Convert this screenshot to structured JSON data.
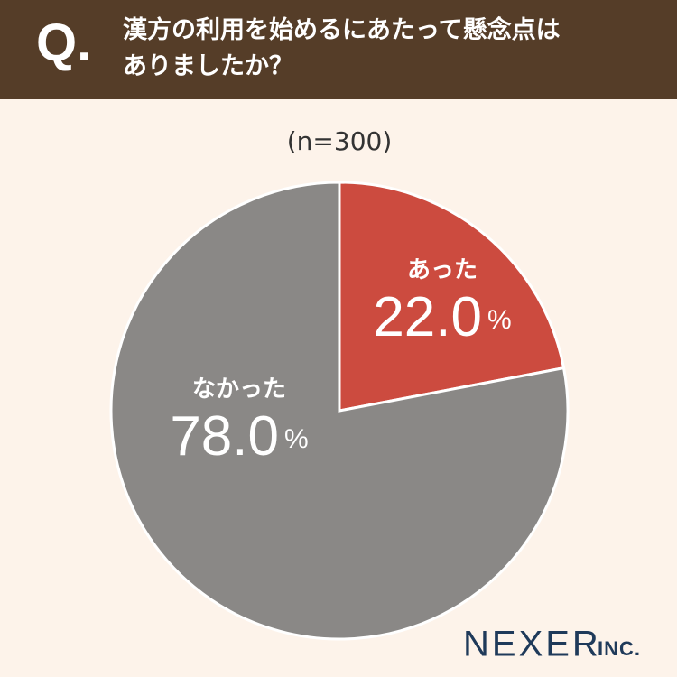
{
  "chart_data": {
    "type": "pie",
    "marker": "Q.",
    "title": "漢方の利用を始めるにあたって懸念点はありましたか？",
    "subtitle": "(n=300)",
    "categories": [
      "あった",
      "なかった"
    ],
    "values": [
      22,
      78
    ],
    "value_labels": [
      "22.0%",
      "78.0%"
    ],
    "colors": [
      "#cc4b3f",
      "#8a8886"
    ],
    "logo": {
      "name": "NEXER",
      "suffix": "INC."
    }
  }
}
